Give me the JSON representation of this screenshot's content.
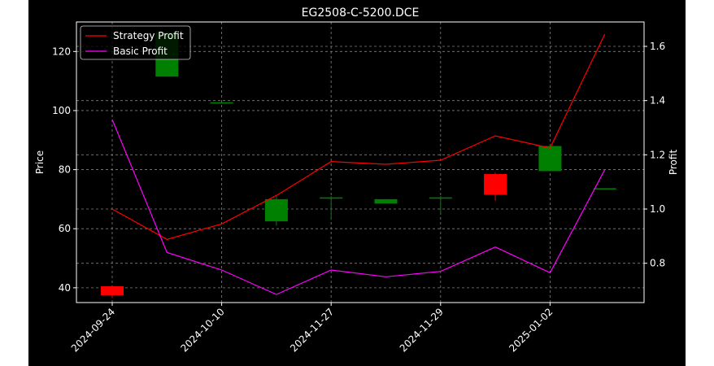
{
  "chart_data": {
    "type": "candlestick+line",
    "title": "EG2508-C-5200.DCE",
    "ylabel_left": "Price",
    "ylabel_right": "Profit",
    "ylim_left": [
      35,
      130
    ],
    "ylim_right": [
      0.655,
      1.69
    ],
    "yticks_left": [
      40,
      60,
      80,
      100,
      120
    ],
    "yticks_right": [
      0.8,
      1.0,
      1.2,
      1.4,
      1.6
    ],
    "ytick_labels_left": [
      "40",
      "60",
      "80",
      "100",
      "120"
    ],
    "ytick_labels_right": [
      "0.8",
      "1.0",
      "1.2",
      "1.4",
      "1.6"
    ],
    "x_labels": [
      "2024-09-24",
      "2024-10-10",
      "2024-11-27",
      "2024-11-29",
      "2025-01-02"
    ],
    "x_label_positions": [
      0,
      2,
      4,
      6,
      8
    ],
    "grid": true,
    "legend_position": "top-left",
    "colors": {
      "up": "#008000",
      "down": "#ff0000",
      "strategy": "#ff0000",
      "basic": "#ff00ff",
      "background": "#000000",
      "grid": "#808080"
    },
    "candles": [
      {
        "index": 0,
        "open": 40.5,
        "close": 37.5,
        "high": 40.5,
        "low": 36.5
      },
      {
        "index": 1,
        "open": 111.5,
        "close": 126.5,
        "high": 127,
        "low": 111.5
      },
      {
        "index": 2,
        "open": 102.6,
        "close": 102.6,
        "high": 102.6,
        "low": 102.6
      },
      {
        "index": 3,
        "open": 62.5,
        "close": 70,
        "high": 71,
        "low": 61
      },
      {
        "index": 4,
        "open": 70.4,
        "close": 70.4,
        "high": 71,
        "low": 63
      },
      {
        "index": 5,
        "open": 68.5,
        "close": 70,
        "high": 70,
        "low": 68.5
      },
      {
        "index": 6,
        "open": 70.4,
        "close": 70.4,
        "high": 71,
        "low": 65
      },
      {
        "index": 7,
        "open": 78.5,
        "close": 71.5,
        "high": 79,
        "low": 69.5
      },
      {
        "index": 8,
        "open": 79.5,
        "close": 88,
        "high": 88.5,
        "low": 79.5
      },
      {
        "index": 9,
        "open": 73.5,
        "close": 73.5,
        "high": 73.5,
        "low": 73.5
      }
    ],
    "series": [
      {
        "name": "Strategy Profit",
        "color": "#ff0000",
        "values": [
          1.0,
          0.888,
          0.945,
          1.05,
          1.175,
          1.165,
          1.18,
          1.27,
          1.225,
          1.645
        ]
      },
      {
        "name": "Basic Profit",
        "color": "#ff00ff",
        "values": [
          1.33,
          0.84,
          0.775,
          0.685,
          0.775,
          0.75,
          0.77,
          0.86,
          0.765,
          1.145
        ]
      }
    ]
  }
}
